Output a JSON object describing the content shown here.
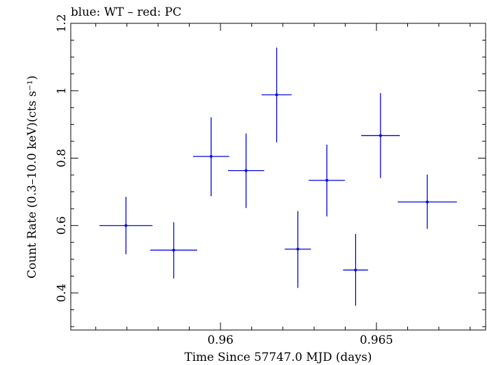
{
  "chart_data": {
    "type": "scatter",
    "title": "blue: WT – red: PC",
    "xlabel": "Time Since 57747.0 MJD (days)",
    "ylabel": "Count Rate (0.3–10.0 keV)(cts s⁻¹)",
    "xlim": [
      0.9552,
      0.9685
    ],
    "ylim": [
      0.29,
      1.2
    ],
    "x_ticks": [
      {
        "value": 0.96,
        "label": "0.96"
      },
      {
        "value": 0.965,
        "label": "0.965"
      }
    ],
    "x_minor_step": 0.001,
    "y_ticks": [
      {
        "value": 0.4,
        "label": "0.4"
      },
      {
        "value": 0.6,
        "label": "0.6"
      },
      {
        "value": 0.8,
        "label": "0.8"
      },
      {
        "value": 1.0,
        "label": "1"
      },
      {
        "value": 1.2,
        "label": "1.2"
      }
    ],
    "y_minor_step": 0.05,
    "grid": false,
    "series": [
      {
        "color": "#0000dd",
        "points": [
          {
            "x": 0.95697,
            "y": 0.6,
            "xerr": 0.00085,
            "ylo": 0.515,
            "yhi": 0.685
          },
          {
            "x": 0.9585,
            "y": 0.527,
            "xerr": 0.00075,
            "ylo": 0.443,
            "yhi": 0.61
          },
          {
            "x": 0.9597,
            "y": 0.805,
            "xerr": 0.00058,
            "ylo": 0.687,
            "yhi": 0.921
          },
          {
            "x": 0.96082,
            "y": 0.763,
            "xerr": 0.00058,
            "ylo": 0.652,
            "yhi": 0.873
          },
          {
            "x": 0.9618,
            "y": 0.988,
            "xerr": 0.00048,
            "ylo": 0.847,
            "yhi": 1.128
          },
          {
            "x": 0.96248,
            "y": 0.53,
            "xerr": 0.00042,
            "ylo": 0.415,
            "yhi": 0.643
          },
          {
            "x": 0.96341,
            "y": 0.734,
            "xerr": 0.00058,
            "ylo": 0.627,
            "yhi": 0.84
          },
          {
            "x": 0.96433,
            "y": 0.468,
            "xerr": 0.0004,
            "ylo": 0.362,
            "yhi": 0.575
          },
          {
            "x": 0.96513,
            "y": 0.867,
            "xerr": 0.00062,
            "ylo": 0.741,
            "yhi": 0.993
          },
          {
            "x": 0.96663,
            "y": 0.67,
            "xerr": 0.00095,
            "ylo": 0.59,
            "yhi": 0.751
          }
        ]
      }
    ]
  }
}
